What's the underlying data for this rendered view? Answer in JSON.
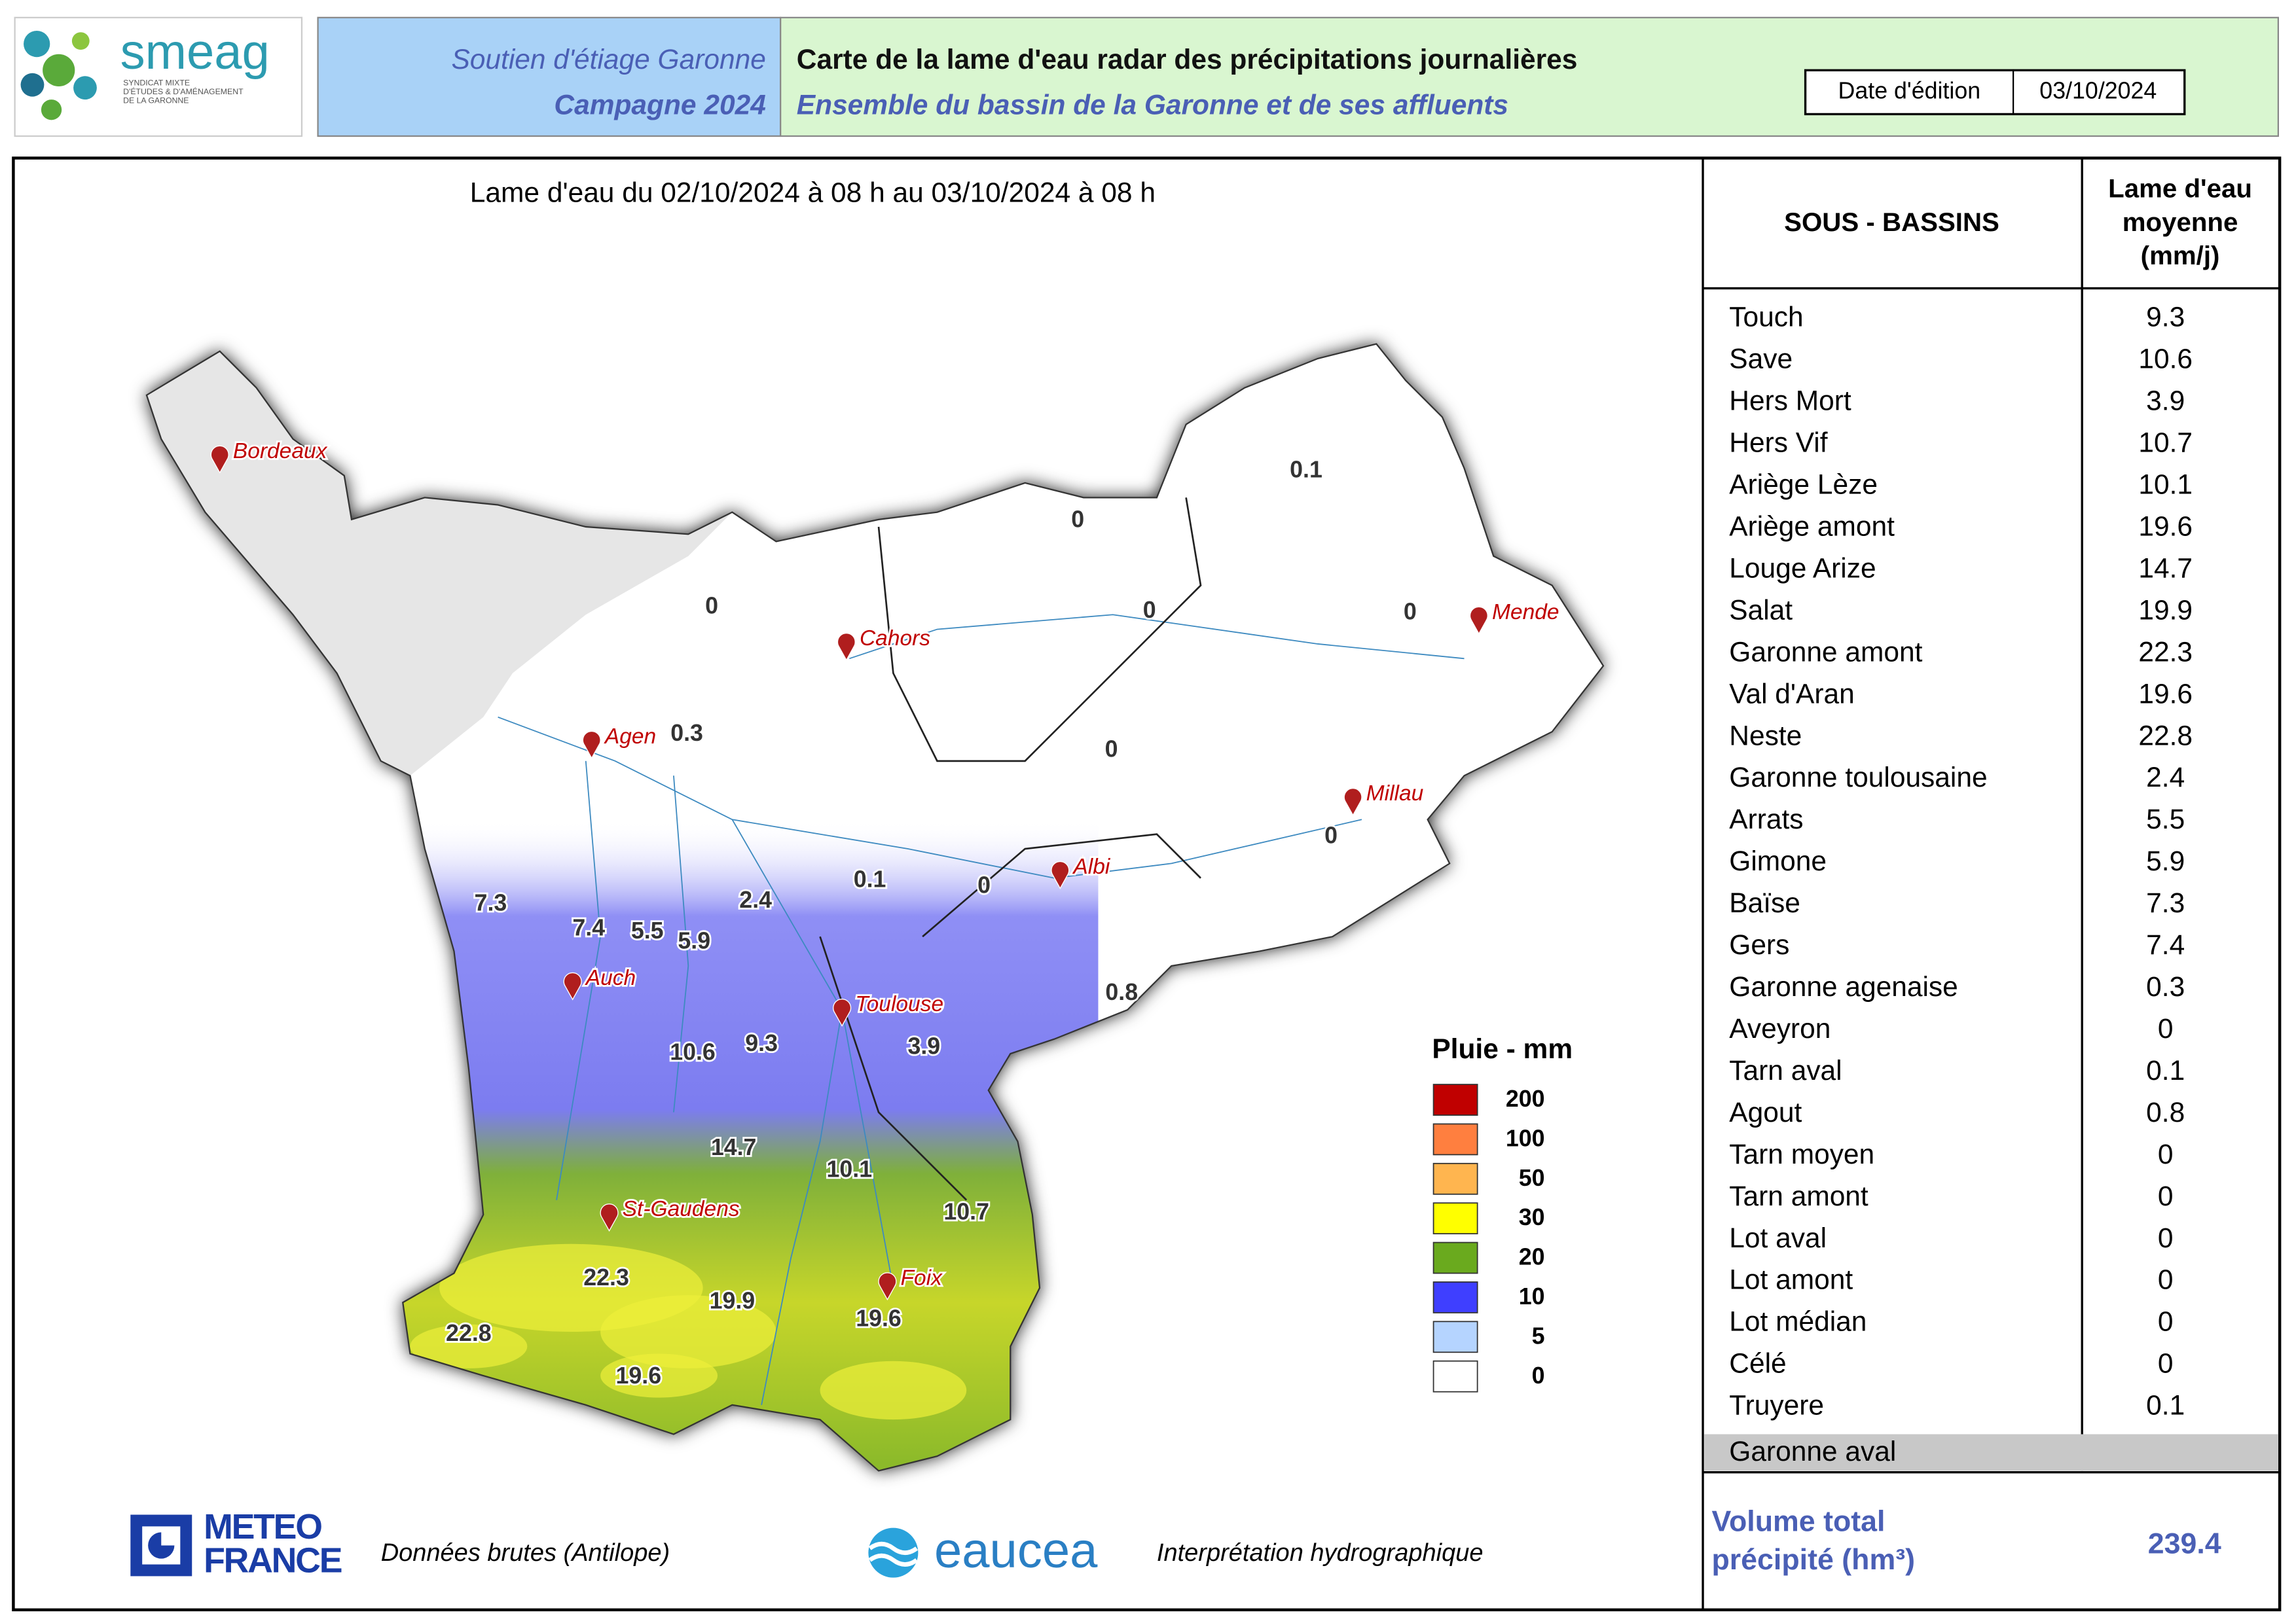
{
  "header": {
    "org_name": "smeag",
    "org_subtitle": [
      "SYNDICAT MIXTE",
      "D'ÉTUDES & D'AMÉNAGEMENT",
      "DE LA GARONNE"
    ],
    "program": "Soutien d'étiage Garonne",
    "campaign": "Campagne 2024",
    "title": "Carte de la lame d'eau radar des précipitations journalières",
    "subtitle": "Ensemble du bassin de la Garonne et de ses affluents",
    "date_label": "Date d'édition",
    "date": "03/10/2024"
  },
  "map": {
    "period": "Lame d'eau du 02/10/2024  à 08 h au  03/10/2024   à 08 h",
    "cities": [
      "Bordeaux",
      "Cahors",
      "Agen",
      "Mende",
      "Millau",
      "Albi",
      "Auch",
      "Toulouse",
      "St-Gaudens",
      "Foix"
    ],
    "basin_values": [
      0.1,
      0,
      0,
      0,
      0,
      0.3,
      0,
      0,
      0.1,
      0,
      7.3,
      7.4,
      5.5,
      5.9,
      2.4,
      0.8,
      10.6,
      9.3,
      3.9,
      14.7,
      10.1,
      10.7,
      22.3,
      19.9,
      19.6,
      22.8,
      19.6
    ]
  },
  "legend": {
    "title": "Pluie - mm",
    "classes": [
      {
        "label": "200",
        "color": "#c00000"
      },
      {
        "label": "100",
        "color": "#ff7f3f"
      },
      {
        "label": "50",
        "color": "#ffb54f"
      },
      {
        "label": "30",
        "color": "#ffff00"
      },
      {
        "label": "20",
        "color": "#6aaa1e"
      },
      {
        "label": "10",
        "color": "#3f3fff"
      },
      {
        "label": "5",
        "color": "#b5d4ff"
      },
      {
        "label": "0",
        "color": "#ffffff"
      }
    ]
  },
  "table": {
    "column_1": "SOUS - BASSINS",
    "column_2": [
      "Lame d'eau",
      "moyenne",
      "(mm/j)"
    ],
    "rows": [
      [
        "Touch",
        9.3
      ],
      [
        "Save",
        10.6
      ],
      [
        "Hers Mort",
        3.9
      ],
      [
        "Hers Vif",
        10.7
      ],
      [
        "Ariège Lèze",
        10.1
      ],
      [
        "Ariège amont",
        19.6
      ],
      [
        "Louge Arize",
        14.7
      ],
      [
        "Salat",
        19.9
      ],
      [
        "Garonne amont",
        22.3
      ],
      [
        "Val d'Aran",
        19.6
      ],
      [
        "Neste",
        22.8
      ],
      [
        "Garonne toulousaine",
        2.4
      ],
      [
        "Arrats",
        5.5
      ],
      [
        "Gimone",
        5.9
      ],
      [
        "Baïse",
        7.3
      ],
      [
        "Gers",
        7.4
      ],
      [
        "Garonne agenaise",
        0.3
      ],
      [
        "Aveyron",
        0
      ],
      [
        "Tarn aval",
        0.1
      ],
      [
        "Agout",
        0.8
      ],
      [
        "Tarn moyen",
        0
      ],
      [
        "Tarn amont",
        0
      ],
      [
        "Lot aval",
        0
      ],
      [
        "Lot amont",
        0
      ],
      [
        "Lot médian",
        0
      ],
      [
        "Célé",
        0
      ],
      [
        "Truyere",
        0.1
      ]
    ],
    "footer_row": "Garonne aval",
    "total_label": [
      "Volume total",
      "précipité (hm³)"
    ],
    "total": 239.4
  },
  "footer": {
    "meteo_logo": [
      "METEO",
      "FRANCE"
    ],
    "meteo_text": "Données brutes (Antilope)",
    "eaucea_logo": "eaucea",
    "eaucea_text": "Interprétation hydrographique"
  }
}
